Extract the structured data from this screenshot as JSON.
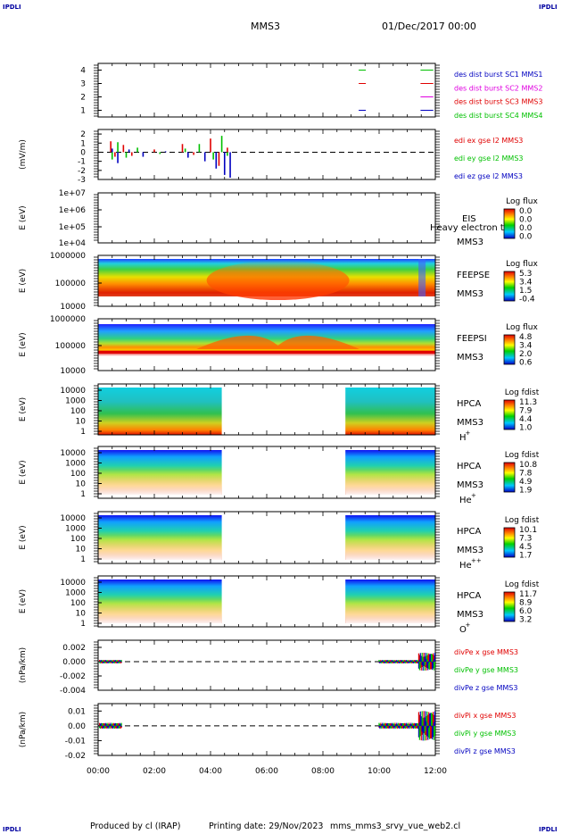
{
  "corner_label": "IPDLI",
  "header": {
    "spacecraft": "MMS3",
    "datetime": "01/Dec/2017 00:00"
  },
  "footer": {
    "produced_by": "Produced by cl (IRAP)",
    "printing_date": "Printing date: 29/Nov/2023",
    "filename": "mms_mms3_srvy_vue_web2.cl"
  },
  "colors": {
    "axis": "#000000",
    "mms1": "#0000c0",
    "mms2": "#e000e0",
    "mms3": "#e00000",
    "mms4": "#00c000",
    "zero_line": "#000000"
  },
  "chart_data": [
    {
      "panel": "des_dist_burst",
      "type": "scatter",
      "ylabel": "",
      "ylim": [
        0.5,
        4.5
      ],
      "ytick_labels": [
        "1",
        "2",
        "3",
        "4"
      ],
      "legend": [
        {
          "text": "des dist burst SC1 MMS1",
          "color": "#0000c0"
        },
        {
          "text": "des dist burst SC2 MMS2",
          "color": "#e000e0"
        },
        {
          "text": "des dist burst SC3 MMS3",
          "color": "#e00000"
        },
        {
          "text": "des dist burst SC4 MMS4",
          "color": "#00c000"
        }
      ],
      "series": [
        {
          "name": "des dist burst SC1 MMS1",
          "y": 1,
          "x_hours": [
            9.4,
            11.6,
            11.7,
            11.8
          ]
        },
        {
          "name": "des dist burst SC2 MMS2",
          "y": 2,
          "x_hours": [
            11.6,
            11.7,
            11.8
          ]
        },
        {
          "name": "des dist burst SC3 MMS3",
          "y": 3,
          "x_hours": [
            9.4,
            11.6,
            11.7,
            11.8
          ]
        },
        {
          "name": "des dist burst SC4 MMS4",
          "y": 4,
          "x_hours": [
            9.4,
            11.6,
            11.7,
            11.8
          ]
        }
      ]
    },
    {
      "panel": "edi_e",
      "type": "line",
      "ylabel": "(mV/m)",
      "ylim": [
        -3,
        2.5
      ],
      "ytick_labels": [
        "2",
        "1",
        "0",
        "-1",
        "-2",
        "-3"
      ],
      "legend": [
        {
          "text": "edi ex gse l2 MMS3",
          "color": "#e00000"
        },
        {
          "text": "edi ey gse l2 MMS3",
          "color": "#00c000"
        },
        {
          "text": "edi ez gse l2 MMS3",
          "color": "#0000c0"
        }
      ],
      "series": [
        {
          "name": "edi ex gse l2 MMS3",
          "x_hours": [
            0.45,
            0.6,
            0.9,
            1.2,
            2.0,
            3.0,
            3.4,
            4.0,
            4.3,
            4.6
          ],
          "values": [
            1.2,
            -0.5,
            0.8,
            -0.4,
            0.3,
            0.9,
            -0.3,
            1.5,
            -1.5,
            0.5
          ]
        },
        {
          "name": "edi ey gse l2 MMS3",
          "x_hours": [
            0.5,
            0.7,
            1.0,
            1.4,
            2.2,
            3.1,
            3.6,
            4.1,
            4.4,
            4.6
          ],
          "values": [
            -0.8,
            1.1,
            -0.6,
            0.5,
            -0.2,
            0.4,
            0.9,
            -0.8,
            1.8,
            -0.4
          ]
        },
        {
          "name": "edi ez gse l2 MMS3",
          "x_hours": [
            0.5,
            0.7,
            1.1,
            1.6,
            2.4,
            3.2,
            3.8,
            4.2,
            4.5,
            4.7
          ],
          "values": [
            0.4,
            -1.2,
            0.3,
            -0.5,
            0.1,
            -0.6,
            -1.0,
            -1.8,
            -2.5,
            -2.8
          ]
        }
      ]
    },
    {
      "panel": "EIS",
      "type": "heatmap",
      "ylabel": "E (eV)",
      "ytick_labels": [
        "1e+07",
        "1e+06",
        "1e+05",
        "1e+04"
      ],
      "instrument": "EIS",
      "spacecraft": "MMS3",
      "extra_label": "Heavy electron to",
      "colorbar": {
        "title": "Log flux",
        "ticks": [
          "0.0",
          "0.0",
          "0.0",
          "0.0"
        ]
      },
      "data_present": false
    },
    {
      "panel": "FEEPSE",
      "type": "heatmap",
      "ylabel": "E (eV)",
      "ytick_labels": [
        "1000000",
        "100000",
        "10000"
      ],
      "instrument": "FEEPSE",
      "spacecraft": "MMS3",
      "colorbar": {
        "title": "Log flux",
        "ticks": [
          "5.3",
          "3.4",
          "1.5",
          "-0.4"
        ]
      },
      "coverage_hours": [
        0,
        12
      ]
    },
    {
      "panel": "FEEPSI",
      "type": "heatmap",
      "ylabel": "E (eV)",
      "ytick_labels": [
        "1000000",
        "100000",
        "10000"
      ],
      "instrument": "FEEPSI",
      "spacecraft": "MMS3",
      "colorbar": {
        "title": "Log flux",
        "ticks": [
          "4.8",
          "3.4",
          "2.0",
          "0.6"
        ]
      },
      "coverage_hours": [
        0,
        12
      ]
    },
    {
      "panel": "HPCA_H+",
      "type": "heatmap",
      "ylabel": "E (eV)",
      "ytick_labels": [
        "10000",
        "1000",
        "100",
        "10",
        "1"
      ],
      "instrument": "HPCA",
      "spacecraft": "MMS3",
      "species": "H",
      "species_charge": "+",
      "colorbar": {
        "title": "Log fdist",
        "ticks": [
          "11.3",
          "7.9",
          "4.4",
          "1.0"
        ]
      },
      "coverage_hours": [
        [
          0,
          4.4
        ],
        [
          8.8,
          12
        ]
      ]
    },
    {
      "panel": "HPCA_He+",
      "type": "heatmap",
      "ylabel": "E (eV)",
      "ytick_labels": [
        "10000",
        "1000",
        "100",
        "10",
        "1"
      ],
      "instrument": "HPCA",
      "spacecraft": "MMS3",
      "species": "He",
      "species_charge": "+",
      "colorbar": {
        "title": "Log fdist",
        "ticks": [
          "10.8",
          "7.8",
          "4.9",
          "1.9"
        ]
      },
      "coverage_hours": [
        [
          0,
          4.4
        ],
        [
          8.8,
          12
        ]
      ]
    },
    {
      "panel": "HPCA_He++",
      "type": "heatmap",
      "ylabel": "E (eV)",
      "ytick_labels": [
        "10000",
        "1000",
        "100",
        "10",
        "1"
      ],
      "instrument": "HPCA",
      "spacecraft": "MMS3",
      "species": "He",
      "species_charge": "++",
      "colorbar": {
        "title": "Log fdist",
        "ticks": [
          "10.1",
          "7.3",
          "4.5",
          "1.7"
        ]
      },
      "coverage_hours": [
        [
          0,
          4.4
        ],
        [
          8.8,
          12
        ]
      ]
    },
    {
      "panel": "HPCA_O+",
      "type": "heatmap",
      "ylabel": "E (eV)",
      "ytick_labels": [
        "10000",
        "1000",
        "100",
        "10",
        "1"
      ],
      "instrument": "HPCA",
      "spacecraft": "MMS3",
      "species": "O",
      "species_charge": "+",
      "colorbar": {
        "title": "Log fdist",
        "ticks": [
          "11.7",
          "8.9",
          "6.0",
          "3.2"
        ]
      },
      "coverage_hours": [
        [
          0,
          4.4
        ],
        [
          8.8,
          12
        ]
      ]
    },
    {
      "panel": "divPe",
      "type": "line",
      "ylabel": "(nPa/km)",
      "ylim": [
        -0.004,
        0.003
      ],
      "ytick_labels": [
        "0.002",
        "0.000",
        "-0.002",
        "-0.004"
      ],
      "legend": [
        {
          "text": "divPe x gse MMS3",
          "color": "#e00000"
        },
        {
          "text": "divPe y gse MMS3",
          "color": "#00c000"
        },
        {
          "text": "divPe z gse MMS3",
          "color": "#0000c0"
        }
      ],
      "coverage_hours": [
        [
          0.05,
          0.85
        ],
        [
          10.0,
          12.0
        ]
      ]
    },
    {
      "panel": "divPi",
      "type": "line",
      "ylabel": "(nPa/km)",
      "ylim": [
        -0.02,
        0.015
      ],
      "ytick_labels": [
        "0.01",
        "0.00",
        "-0.01",
        "-0.02"
      ],
      "legend": [
        {
          "text": "divPi x gse MMS3",
          "color": "#e00000"
        },
        {
          "text": "divPi y gse MMS3",
          "color": "#00c000"
        },
        {
          "text": "divPi z gse MMS3",
          "color": "#0000c0"
        }
      ],
      "coverage_hours": [
        [
          0.05,
          0.85
        ],
        [
          10.0,
          12.0
        ]
      ]
    }
  ],
  "x_axis": {
    "ticks": [
      "00:00",
      "02:00",
      "04:00",
      "06:00",
      "08:00",
      "10:00",
      "12:00"
    ],
    "range_hours": [
      0,
      12
    ]
  }
}
